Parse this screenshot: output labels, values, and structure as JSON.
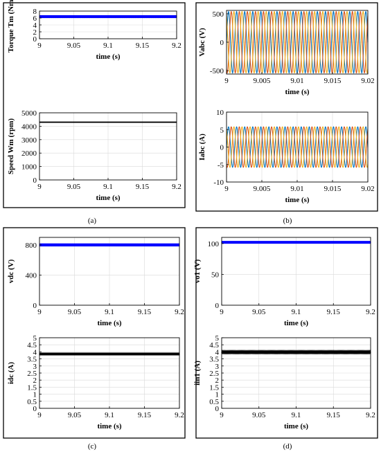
{
  "chart_data": [
    {
      "id": "a1",
      "panel": "(a)",
      "type": "line",
      "ylabel": "Torque Tm (Nm)",
      "xlabel": "time (s)",
      "xlim": [
        9,
        9.2
      ],
      "ylim": [
        0,
        8
      ],
      "xticks": [
        "9",
        "9.05",
        "9.1",
        "9.15",
        "9.2"
      ],
      "xtick_values": [
        9,
        9.05,
        9.1,
        9.15,
        9.2
      ],
      "yticks": [
        "0",
        "2",
        "4",
        "6",
        "8"
      ],
      "ytick_values": [
        0,
        2,
        4,
        6,
        8
      ],
      "grid": true,
      "series": [
        {
          "kind": "constant",
          "value": 6.4,
          "ripple": 0.12,
          "color": "#0000ff"
        }
      ]
    },
    {
      "id": "a2",
      "panel": "(a)",
      "type": "line",
      "ylabel": "Speed Wm (rpm)",
      "xlabel": "time (s)",
      "xlim": [
        9,
        9.2
      ],
      "ylim": [
        0,
        5000
      ],
      "xticks": [
        "9",
        "9.05",
        "9.1",
        "9.15",
        "9.2"
      ],
      "xtick_values": [
        9,
        9.05,
        9.1,
        9.15,
        9.2
      ],
      "yticks": [
        "0",
        "1000",
        "2000",
        "3000",
        "4000",
        "5000"
      ],
      "ytick_values": [
        0,
        1000,
        2000,
        3000,
        4000,
        5000
      ],
      "grid": true,
      "series": [
        {
          "kind": "constant",
          "value": 4300,
          "ripple": 0,
          "color": "#000000"
        }
      ]
    },
    {
      "id": "b1",
      "panel": "(b)",
      "type": "line",
      "ylabel": "Vabc (V)",
      "xlabel": "time (s)",
      "xlim": [
        9,
        9.02
      ],
      "ylim": [
        -560,
        560
      ],
      "xticks": [
        "9",
        "9.005",
        "9.01",
        "9.015",
        "9.02"
      ],
      "xtick_values": [
        9,
        9.005,
        9.01,
        9.015,
        9.02
      ],
      "yticks": [
        "-500",
        "0",
        "500"
      ],
      "ytick_values": [
        -500,
        0,
        500
      ],
      "grid": true,
      "series": [
        {
          "kind": "sine",
          "amplitude": 540,
          "cycles": 17.5,
          "phase_deg": 0,
          "color": "#0072bd"
        },
        {
          "kind": "sine",
          "amplitude": 540,
          "cycles": 17.5,
          "phase_deg": -120,
          "color": "#d95319"
        },
        {
          "kind": "sine",
          "amplitude": 540,
          "cycles": 17.5,
          "phase_deg": 120,
          "color": "#edb120"
        }
      ]
    },
    {
      "id": "b2",
      "panel": "(b)",
      "type": "line",
      "ylabel": "Iabc (A)",
      "xlabel": "time (s)",
      "xlim": [
        9,
        9.02
      ],
      "ylim": [
        -10,
        10
      ],
      "xticks": [
        "9",
        "9.005",
        "9.01",
        "9.015",
        "9.02"
      ],
      "xtick_values": [
        9,
        9.005,
        9.01,
        9.015,
        9.02
      ],
      "yticks": [
        "-10",
        "-5",
        "0",
        "5",
        "10"
      ],
      "ytick_values": [
        -10,
        -5,
        0,
        5,
        10
      ],
      "grid": true,
      "series": [
        {
          "kind": "sine",
          "amplitude": 5.8,
          "cycles": 17.5,
          "phase_deg": 0,
          "color": "#0072bd"
        },
        {
          "kind": "sine",
          "amplitude": 5.8,
          "cycles": 17.5,
          "phase_deg": -120,
          "color": "#d95319"
        },
        {
          "kind": "sine",
          "amplitude": 5.8,
          "cycles": 17.5,
          "phase_deg": 120,
          "color": "#edb120"
        }
      ]
    },
    {
      "id": "c1",
      "panel": "(c)",
      "type": "line",
      "ylabel": "vdc (V)",
      "xlabel": "time (s)",
      "xlim": [
        9,
        9.2
      ],
      "ylim": [
        0,
        900
      ],
      "xticks": [
        "9",
        "9.05",
        "9.1",
        "9.15",
        "9.2"
      ],
      "xtick_values": [
        9,
        9.05,
        9.1,
        9.15,
        9.2
      ],
      "yticks": [
        "0",
        "400",
        "800"
      ],
      "ytick_values": [
        0,
        400,
        800
      ],
      "grid": true,
      "series": [
        {
          "kind": "constant",
          "value": 800,
          "ripple": 6,
          "color": "#0000ff"
        }
      ]
    },
    {
      "id": "c2",
      "panel": "(c)",
      "type": "line",
      "ylabel": "idc (A)",
      "xlabel": "time (s)",
      "xlim": [
        9,
        9.2
      ],
      "ylim": [
        0,
        5
      ],
      "xticks": [
        "9",
        "9.05",
        "9.1",
        "9.15",
        "9.2"
      ],
      "xtick_values": [
        9,
        9.05,
        9.1,
        9.15,
        9.2
      ],
      "yticks": [
        "0",
        "0.5",
        "1",
        "1.5",
        "2",
        "2.5",
        "3",
        "3.5",
        "4",
        "4.5",
        "5"
      ],
      "ytick_values": [
        0,
        0.5,
        1,
        1.5,
        2,
        2.5,
        3,
        3.5,
        4,
        4.5,
        5
      ],
      "grid": true,
      "series": [
        {
          "kind": "constant",
          "value": 3.85,
          "ripple": 0.06,
          "color": "#000000"
        }
      ]
    },
    {
      "id": "d1",
      "panel": "(d)",
      "type": "line",
      "ylabel": "vo1 (V)",
      "xlabel": "time (s)",
      "xlim": [
        9,
        9.2
      ],
      "ylim": [
        0,
        110
      ],
      "xticks": [
        "9",
        "9.05",
        "9.1",
        "9.15",
        "9.2"
      ],
      "xtick_values": [
        9,
        9.05,
        9.1,
        9.15,
        9.2
      ],
      "yticks": [
        "0",
        "50",
        "100"
      ],
      "ytick_values": [
        0,
        50,
        100
      ],
      "grid": true,
      "series": [
        {
          "kind": "constant",
          "value": 102,
          "ripple": 1.2,
          "color": "#0000ff"
        }
      ]
    },
    {
      "id": "d2",
      "panel": "(d)",
      "type": "line",
      "ylabel": "iin1 (A)",
      "xlabel": "time (s)",
      "xlim": [
        9,
        9.2
      ],
      "ylim": [
        0,
        5
      ],
      "xticks": [
        "9",
        "9.05",
        "9.1",
        "9.15",
        "9.2"
      ],
      "xtick_values": [
        9,
        9.05,
        9.1,
        9.15,
        9.2
      ],
      "yticks": [
        "0",
        "0.5",
        "1",
        "1.5",
        "2",
        "2.5",
        "3",
        "3.5",
        "4",
        "4.5",
        "5"
      ],
      "ytick_values": [
        0,
        0.5,
        1,
        1.5,
        2,
        2.5,
        3,
        3.5,
        4,
        4.5,
        5
      ],
      "grid": true,
      "series": [
        {
          "kind": "constant",
          "value": 3.98,
          "ripple": 0.05,
          "color": "#000000"
        }
      ]
    }
  ],
  "panel_labels": [
    "(a)",
    "(b)",
    "(c)",
    "(d)"
  ]
}
